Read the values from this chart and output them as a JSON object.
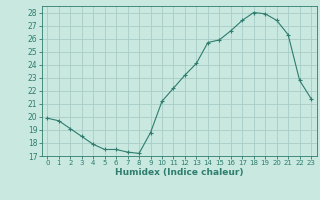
{
  "x": [
    0,
    1,
    2,
    3,
    4,
    5,
    6,
    7,
    8,
    9,
    10,
    11,
    12,
    13,
    14,
    15,
    16,
    17,
    18,
    19,
    20,
    21,
    22,
    23
  ],
  "y": [
    19.9,
    19.7,
    19.1,
    18.5,
    17.9,
    17.5,
    17.5,
    17.3,
    17.2,
    18.8,
    21.2,
    22.2,
    23.2,
    24.1,
    25.7,
    25.9,
    26.6,
    27.4,
    28.0,
    27.9,
    27.4,
    26.3,
    22.8,
    21.4
  ],
  "line_color": "#2e7d6e",
  "marker": "+",
  "marker_size": 3,
  "bg_color": "#c8e8e0",
  "grid_color": "#a8ccc8",
  "axis_color": "#2e7d6e",
  "xlabel": "Humidex (Indice chaleur)",
  "ylim": [
    17,
    28.5
  ],
  "yticks": [
    17,
    18,
    19,
    20,
    21,
    22,
    23,
    24,
    25,
    26,
    27,
    28
  ],
  "xticks": [
    0,
    1,
    2,
    3,
    4,
    5,
    6,
    7,
    8,
    9,
    10,
    11,
    12,
    13,
    14,
    15,
    16,
    17,
    18,
    19,
    20,
    21,
    22,
    23
  ],
  "xlim": [
    -0.5,
    23.5
  ]
}
